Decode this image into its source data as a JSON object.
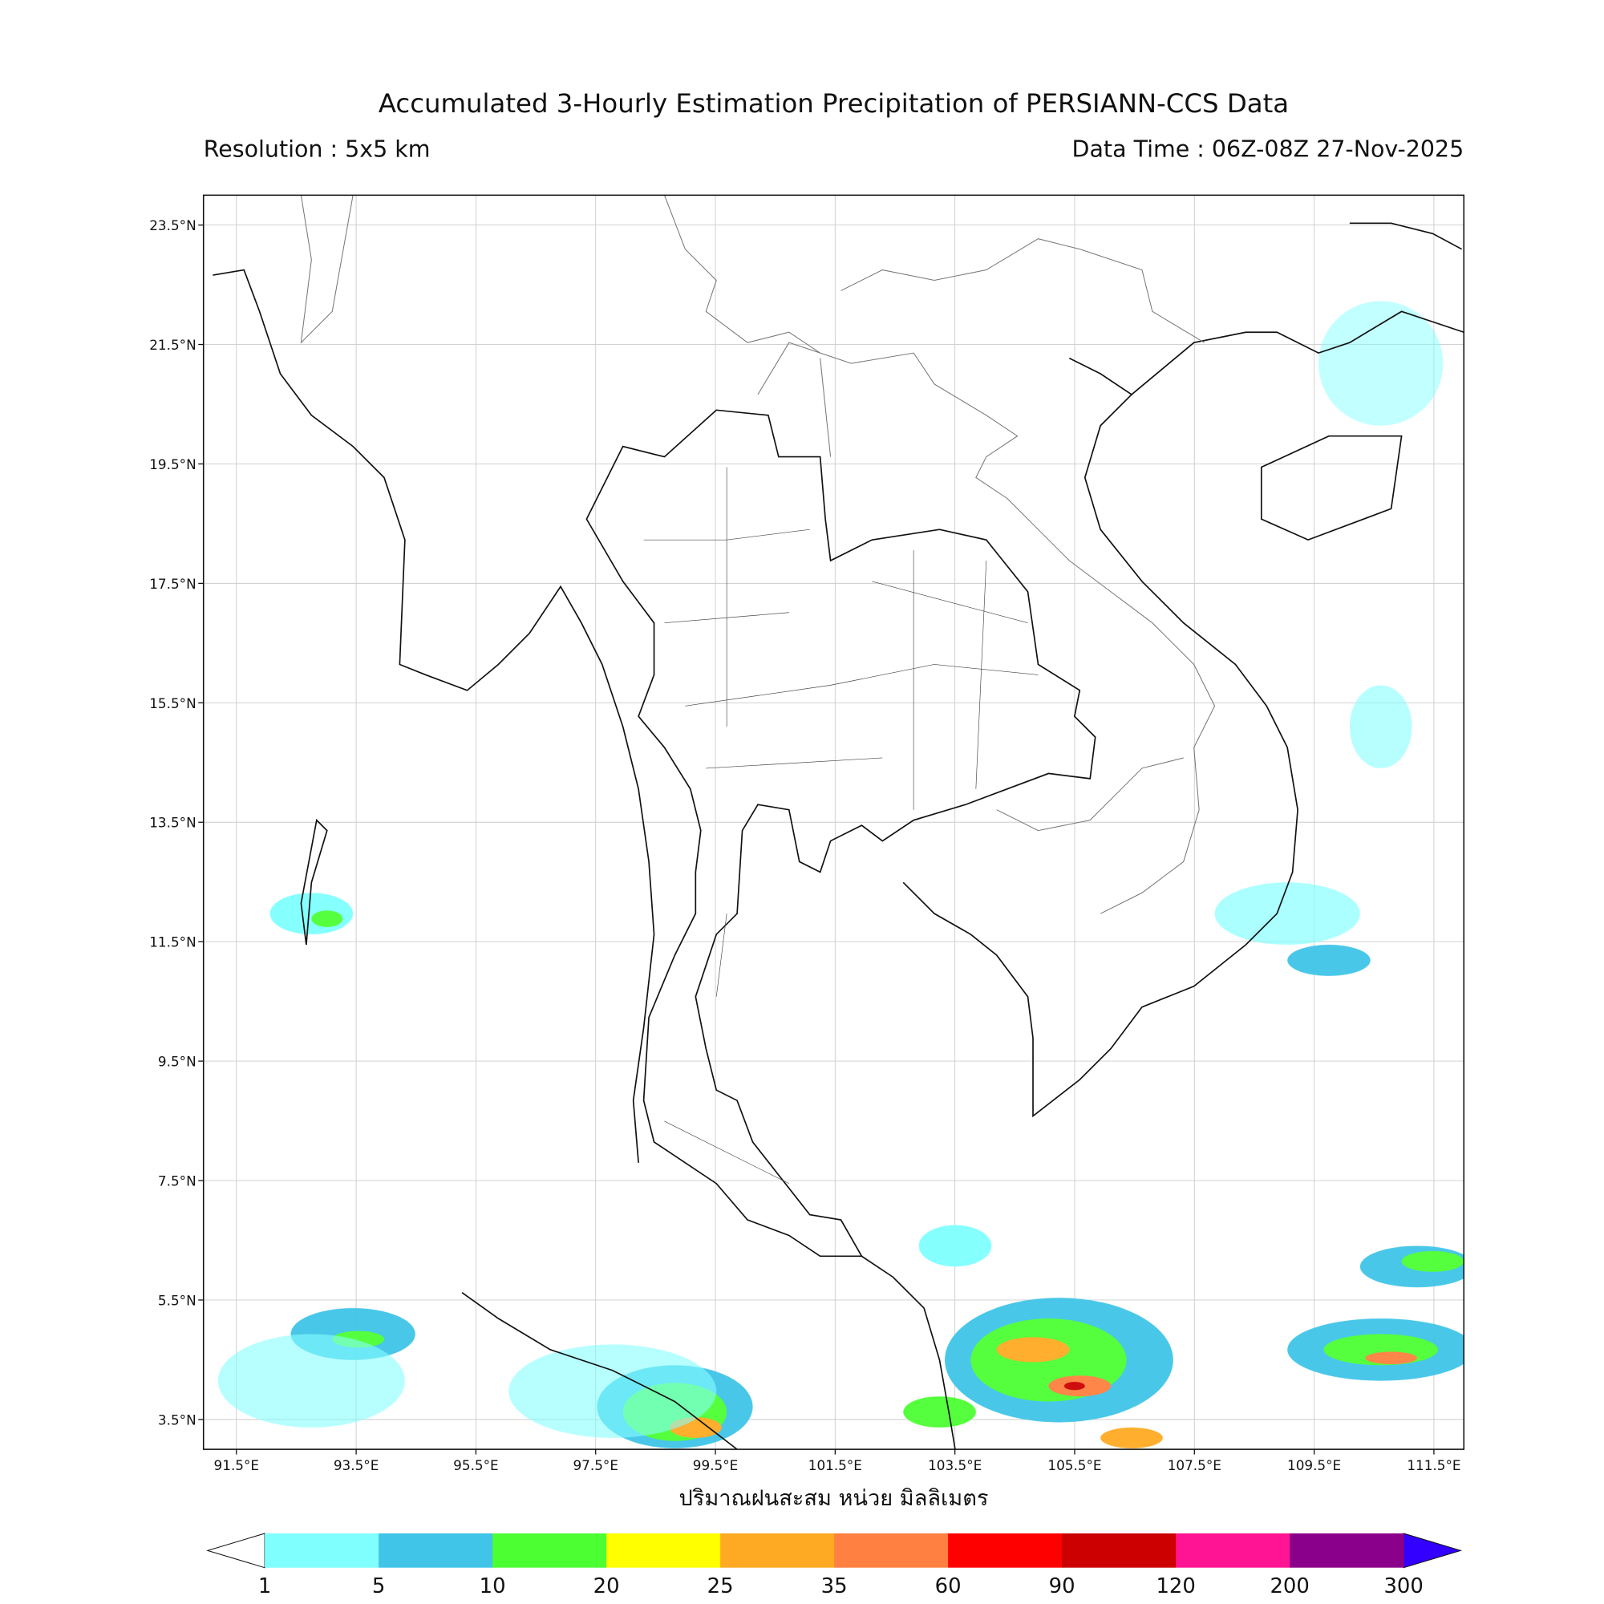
{
  "header": {
    "title": "Accumulated 3-Hourly Estimation Precipitation of PERSIANN-CCS Data",
    "resolution": "Resolution : 5x5 km",
    "data_time": "Data Time : 06Z-08Z 27-Nov-2025"
  },
  "map": {
    "lon_range": [
      90.95,
      112.0
    ],
    "lat_range": [
      3.0,
      24.0
    ],
    "lon_ticks": [
      {
        "value": 91.5,
        "label": "91.5°E"
      },
      {
        "value": 93.5,
        "label": "93.5°E"
      },
      {
        "value": 95.5,
        "label": "95.5°E"
      },
      {
        "value": 97.5,
        "label": "97.5°E"
      },
      {
        "value": 99.5,
        "label": "99.5°E"
      },
      {
        "value": 101.5,
        "label": "101.5°E"
      },
      {
        "value": 103.5,
        "label": "103.5°E"
      },
      {
        "value": 105.5,
        "label": "105.5°E"
      },
      {
        "value": 107.5,
        "label": "107.5°E"
      },
      {
        "value": 109.5,
        "label": "109.5°E"
      },
      {
        "value": 111.5,
        "label": "111.5°E"
      }
    ],
    "lat_ticks": [
      {
        "value": 23.5,
        "label": "23.5°N"
      },
      {
        "value": 21.5,
        "label": "21.5°N"
      },
      {
        "value": 19.5,
        "label": "19.5°N"
      },
      {
        "value": 17.5,
        "label": "17.5°N"
      },
      {
        "value": 15.5,
        "label": "15.5°N"
      },
      {
        "value": 13.5,
        "label": "13.5°N"
      },
      {
        "value": 11.5,
        "label": "11.5°N"
      },
      {
        "value": 9.5,
        "label": "9.5°N"
      },
      {
        "value": 7.5,
        "label": "7.5°N"
      },
      {
        "value": 5.5,
        "label": "5.5°N"
      },
      {
        "value": 3.5,
        "label": "3.5°N"
      }
    ],
    "grid": true
  },
  "colorbar": {
    "label": "ปริมาณฝนสะสม หน่วย มิลลิเมตร",
    "levels": [
      1,
      5,
      10,
      20,
      25,
      35,
      60,
      90,
      120,
      200,
      300
    ],
    "colors": [
      "#80ffff",
      "#40c4e8",
      "#4cff33",
      "#ffff00",
      "#ffaa22",
      "#ff8040",
      "#ff0000",
      "#cc0000",
      "#ff1493",
      "#8b008b"
    ],
    "under_color": "#ffffff",
    "over_color": "#3300ff"
  }
}
